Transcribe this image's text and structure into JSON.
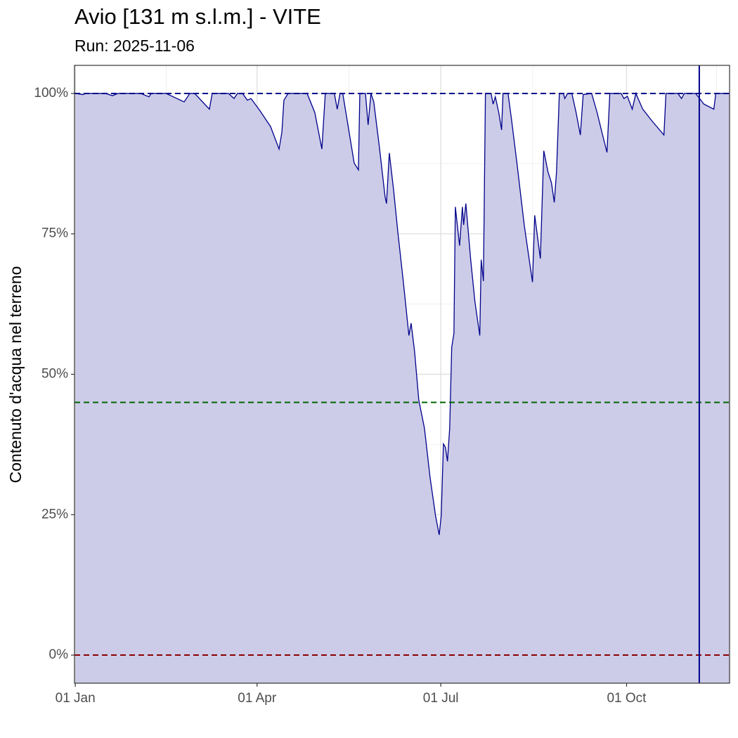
{
  "chart_data": {
    "type": "area",
    "title": "Avio [131 m s.l.m.] - VITE",
    "subtitle": "Run: 2025-11-06",
    "ylabel": "Contenuto d'acqua nel terreno",
    "color": "#00008b",
    "fill": "#ccccE8",
    "x": [
      0,
      3.8,
      5.2,
      15,
      18.4,
      21.2,
      32.3,
      36.5,
      37.6,
      44.9,
      53.9,
      56.7,
      59.1,
      66.4,
      67.8,
      75.8,
      78.6,
      80.3,
      82.8,
      85.2,
      87,
      91.5,
      96.7,
      100.9,
      102.3,
      103.3,
      105.4,
      114.8,
      118.6,
      122.1,
      123.8,
      128.3,
      129.7,
      131.1,
      132.5,
      138.1,
      140.2,
      140.9,
      143.7,
      145,
      146.4,
      147.8,
      150.6,
      153.4,
      154.1,
      155.5,
      157.6,
      159.7,
      162.4,
      165.2,
      166.3,
      168,
      170.1,
      172.9,
      175.7,
      178.4,
      180.2,
      181.2,
      182.3,
      183.3,
      184.3,
      185.4,
      186.4,
      187.5,
      188.2,
      190.3,
      191.7,
      192.3,
      193.4,
      195.8,
      197.9,
      200.3,
      201,
      202.1,
      203.1,
      205.9,
      206.9,
      208,
      209.7,
      211.1,
      211.8,
      214.3,
      216,
      218.8,
      222.3,
      226.4,
      227.5,
      230.3,
      232,
      234.1,
      235.8,
      237.2,
      238.3,
      239.7,
      241.7,
      242.4,
      243.8,
      245.9,
      248,
      250.1,
      251.5,
      255.7,
      258.4,
      260.5,
      263.3,
      264.7,
      270.3,
      271.7,
      273.4,
      275.8,
      277.6,
      281,
      285.6,
      291.5,
      292.5,
      298.4,
      300.2,
      301.6,
      307.1,
      308.5,
      311.3,
      316.2,
      317.2,
      323.8
    ],
    "values": [
      100,
      99.8,
      100,
      100,
      99.6,
      100,
      100,
      99.4,
      100,
      100,
      98.5,
      100,
      100,
      97.2,
      100,
      100,
      99.1,
      100,
      100,
      98.8,
      99.1,
      96.9,
      94.1,
      90.1,
      93.1,
      98.8,
      100,
      100,
      96.6,
      90.1,
      100,
      100,
      97.2,
      100,
      99.9,
      87.6,
      86.4,
      100,
      100,
      94.4,
      100,
      98.5,
      90.4,
      81.6,
      80.4,
      89.4,
      82.9,
      75.4,
      66.6,
      56.9,
      59.1,
      54.1,
      45.4,
      40.4,
      31.6,
      24.8,
      21.4,
      24.8,
      37.6,
      37,
      34.5,
      40.4,
      54.8,
      57.3,
      79.8,
      72.9,
      79.8,
      76.6,
      80.4,
      70.4,
      62.9,
      56.9,
      70.4,
      66.6,
      100,
      100,
      98.1,
      99.4,
      96.6,
      93.5,
      100,
      100,
      95.4,
      87.3,
      76.6,
      66.4,
      78.3,
      70.6,
      89.8,
      86,
      84.1,
      80.6,
      86,
      100,
      100,
      99.1,
      100,
      100,
      96.6,
      92.6,
      99.8,
      100,
      96.6,
      93.5,
      89.5,
      100,
      100,
      99.1,
      99.5,
      97.2,
      100,
      97.2,
      95.1,
      92.6,
      100,
      100,
      99.1,
      100,
      100,
      99.4,
      98.1,
      97.2,
      100,
      100
    ],
    "xlim": [
      -0.4,
      324
    ],
    "ylim": [
      -5,
      105
    ],
    "xticks": [
      {
        "value": 0,
        "label": "01 Jan"
      },
      {
        "value": 90,
        "label": "01 Apr"
      },
      {
        "value": 181,
        "label": "01 Jul"
      },
      {
        "value": 273,
        "label": "01 Oct"
      }
    ],
    "xminor": [
      45,
      135.5,
      226.5,
      317.5
    ],
    "yticks": [
      {
        "value": 0,
        "label": "0%"
      },
      {
        "value": 25,
        "label": "25%"
      },
      {
        "value": 50,
        "label": "50%"
      },
      {
        "value": 75,
        "label": "75%"
      },
      {
        "value": 100,
        "label": "100%"
      }
    ],
    "yminor": [
      12.5,
      37.5,
      62.5,
      87.5
    ],
    "hlines": [
      {
        "value": 100,
        "color": "#00008b"
      },
      {
        "value": 45,
        "color": "#006400"
      },
      {
        "value": 0,
        "color": "#8b0000"
      }
    ],
    "vline": {
      "x": 309,
      "color": "#00008b"
    },
    "grid": true
  }
}
